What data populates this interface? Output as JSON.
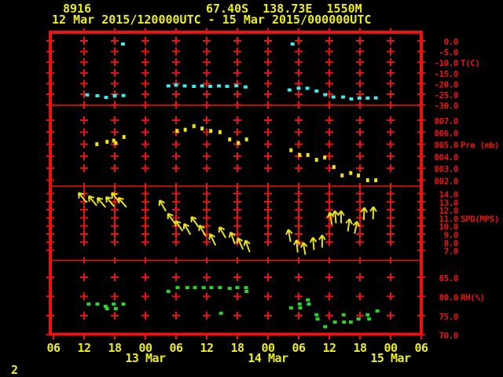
{
  "header": {
    "station_id": "8916",
    "location": "67.40S  138.73E  1550M",
    "time_range": "12 Mar 2015/120000UTC - 15 Mar 2015/000000UTC"
  },
  "page_number": "2",
  "colors": {
    "background": "#000000",
    "axis_red": "#ee1111",
    "text_yellow": "#eded1c",
    "temp_cyan": "#44e8e8",
    "pressure_yellow": "#e8e11c",
    "wind_yellow": "#e8e11c",
    "rh_green": "#2cd42c"
  },
  "chart_data": {
    "type": "scatter",
    "title": "Station meteogram 8916",
    "x_axis": {
      "start": "12 Mar 2015 06:00 UTC",
      "end": "15 Mar 2015 06:00 UTC",
      "span_hours": 72,
      "tick_interval_hours": 6,
      "tick_labels": [
        "06",
        "12",
        "18",
        "00",
        "06",
        "12",
        "18",
        "00",
        "06",
        "12",
        "18",
        "00",
        "06"
      ],
      "date_labels": [
        {
          "label": "13 Mar",
          "hour": 18
        },
        {
          "label": "14 Mar",
          "hour": 42
        },
        {
          "label": "15 Mar",
          "hour": 66
        }
      ]
    },
    "point_format": "temperature/pressure/humidity: [hours_after_axis_start, value]; wind: [hours_after_axis_start, speed, arrow_tilt_deg]",
    "panels": [
      {
        "name": "temperature",
        "label": "T(C)",
        "ylim": [
          -30,
          0
        ],
        "ticks": [
          0.0,
          -5.0,
          -10.0,
          -15.0,
          -20.0,
          -25.0,
          -30.0
        ],
        "tick_labels": [
          "0.0",
          "-5.0",
          "-10.0",
          "-15.0",
          "-20.0",
          "-25.0",
          "-30.0"
        ],
        "points": [
          [
            6.6,
            -25.3
          ],
          [
            8.6,
            -25.7
          ],
          [
            10.3,
            -26.5
          ],
          [
            12.0,
            -25.7
          ],
          [
            13.6,
            -1.5
          ],
          [
            13.7,
            -25.6
          ],
          [
            22.5,
            -21.1
          ],
          [
            24.0,
            -20.7
          ],
          [
            25.7,
            -21.1
          ],
          [
            27.5,
            -21.3
          ],
          [
            29.1,
            -21.1
          ],
          [
            30.7,
            -21.3
          ],
          [
            32.4,
            -21.1
          ],
          [
            34.0,
            -21.3
          ],
          [
            35.8,
            -21.0
          ],
          [
            37.6,
            -21.6
          ],
          [
            46.2,
            -23.0
          ],
          [
            46.8,
            -1.5
          ],
          [
            48.0,
            -22.2
          ],
          [
            49.7,
            -22.2
          ],
          [
            51.5,
            -23.5
          ],
          [
            53.2,
            -25.2
          ],
          [
            54.8,
            -26.3
          ],
          [
            56.7,
            -26.3
          ],
          [
            58.3,
            -27.2
          ],
          [
            59.9,
            -26.8
          ],
          [
            61.5,
            -26.8
          ],
          [
            63.1,
            -26.7
          ]
        ]
      },
      {
        "name": "pressure",
        "label": "Pre (mb)",
        "ylim": [
          802,
          807
        ],
        "ticks": [
          807.0,
          806.0,
          805.0,
          804.0,
          803.0,
          802.0
        ],
        "tick_labels": [
          "807.0",
          "806.0",
          "805.0",
          "804.0",
          "803.0",
          "802.0"
        ],
        "points": [
          [
            8.5,
            805.0
          ],
          [
            10.5,
            805.2
          ],
          [
            11.8,
            805.3
          ],
          [
            12.2,
            805.1
          ],
          [
            13.8,
            805.6
          ],
          [
            24.2,
            806.1
          ],
          [
            25.8,
            806.2
          ],
          [
            27.5,
            806.5
          ],
          [
            29.1,
            806.3
          ],
          [
            30.8,
            806.1
          ],
          [
            32.6,
            806.0
          ],
          [
            34.5,
            805.4
          ],
          [
            36.2,
            805.1
          ],
          [
            37.8,
            805.4
          ],
          [
            46.5,
            804.5
          ],
          [
            48.2,
            804.1
          ],
          [
            49.8,
            804.1
          ],
          [
            51.5,
            803.7
          ],
          [
            53.1,
            803.9
          ],
          [
            54.9,
            803.1
          ],
          [
            56.5,
            802.4
          ],
          [
            58.2,
            802.6
          ],
          [
            59.7,
            802.4
          ],
          [
            61.5,
            802.0
          ],
          [
            63.1,
            802.0
          ]
        ]
      },
      {
        "name": "wind_speed",
        "label": "SPD(MPS)",
        "ylim": [
          7,
          14
        ],
        "ticks": [
          14.0,
          13.0,
          12.0,
          11.0,
          10.0,
          9.0,
          8.0,
          7.0
        ],
        "tick_labels": [
          "14.0",
          "13.0",
          "12.0",
          "11.0",
          "10.0",
          "9.0",
          "8.0",
          "7.0"
        ],
        "points": [
          [
            5.7,
            13.5,
            -40
          ],
          [
            7.7,
            13.1,
            -40
          ],
          [
            9.4,
            12.9,
            -40
          ],
          [
            11.1,
            13.0,
            -40
          ],
          [
            12.2,
            13.5,
            -40
          ],
          [
            13.5,
            12.9,
            -40
          ],
          [
            21.4,
            12.5,
            -30
          ],
          [
            23.1,
            10.9,
            -35
          ],
          [
            24.6,
            10.0,
            -35
          ],
          [
            26.2,
            9.6,
            -30
          ],
          [
            27.7,
            10.5,
            -35
          ],
          [
            29.2,
            9.4,
            -30
          ],
          [
            31.2,
            8.3,
            -25
          ],
          [
            33.1,
            9.2,
            -30
          ],
          [
            35.1,
            8.5,
            -20
          ],
          [
            36.6,
            7.8,
            -25
          ],
          [
            38.0,
            7.5,
            -20
          ],
          [
            46.2,
            8.8,
            -10
          ],
          [
            47.7,
            7.5,
            -5
          ],
          [
            49.1,
            7.2,
            -10
          ],
          [
            50.9,
            7.8,
            -5
          ],
          [
            52.6,
            8.1,
            0
          ],
          [
            54.3,
            10.9,
            -10
          ],
          [
            55.2,
            11.1,
            -5
          ],
          [
            56.3,
            11.1,
            0
          ],
          [
            57.8,
            10.1,
            8
          ],
          [
            59.2,
            9.8,
            12
          ],
          [
            60.8,
            11.5,
            3
          ],
          [
            62.6,
            11.6,
            2
          ]
        ]
      },
      {
        "name": "humidity",
        "label": "RH(%)",
        "ylim": [
          70,
          85
        ],
        "ticks": [
          85.0,
          80.0,
          75.0,
          70.0
        ],
        "tick_labels": [
          "85.0",
          "80.0",
          "75.0",
          "70.0"
        ],
        "points": [
          [
            6.9,
            78.0
          ],
          [
            8.6,
            78.0
          ],
          [
            10.2,
            77.4
          ],
          [
            10.5,
            76.8
          ],
          [
            11.8,
            78.0
          ],
          [
            12.2,
            76.8
          ],
          [
            13.7,
            78.0
          ],
          [
            22.5,
            81.3
          ],
          [
            24.3,
            82.3
          ],
          [
            26.2,
            82.3
          ],
          [
            27.7,
            82.3
          ],
          [
            29.4,
            82.3
          ],
          [
            30.9,
            82.3
          ],
          [
            32.6,
            82.3
          ],
          [
            32.8,
            75.6
          ],
          [
            34.5,
            82.1
          ],
          [
            36.0,
            82.3
          ],
          [
            37.7,
            82.3
          ],
          [
            37.8,
            81.3
          ],
          [
            46.5,
            77.0
          ],
          [
            48.2,
            78.0
          ],
          [
            48.3,
            77.0
          ],
          [
            49.8,
            79.1
          ],
          [
            50.0,
            78.0
          ],
          [
            51.5,
            75.2
          ],
          [
            51.7,
            74.1
          ],
          [
            53.2,
            72.1
          ],
          [
            55.1,
            73.3
          ],
          [
            56.8,
            75.2
          ],
          [
            56.9,
            73.3
          ],
          [
            58.2,
            73.3
          ],
          [
            59.7,
            74.1
          ],
          [
            61.5,
            75.2
          ],
          [
            61.8,
            74.1
          ],
          [
            63.4,
            76.2
          ]
        ]
      }
    ]
  }
}
